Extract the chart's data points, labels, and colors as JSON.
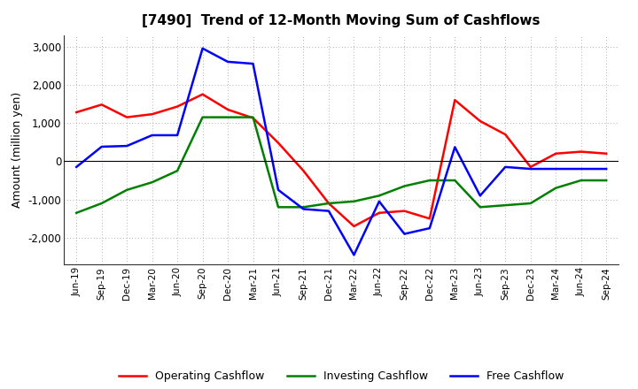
{
  "title": "[7490]  Trend of 12-Month Moving Sum of Cashflows",
  "ylabel": "Amount (million yen)",
  "background_color": "#ffffff",
  "grid_color": "#999999",
  "x_labels": [
    "Jun-19",
    "Sep-19",
    "Dec-19",
    "Mar-20",
    "Jun-20",
    "Sep-20",
    "Dec-20",
    "Mar-21",
    "Jun-21",
    "Sep-21",
    "Dec-21",
    "Mar-22",
    "Jun-22",
    "Sep-22",
    "Dec-22",
    "Mar-23",
    "Jun-23",
    "Sep-23",
    "Dec-23",
    "Mar-24",
    "Jun-24",
    "Sep-24"
  ],
  "operating_cashflow": [
    1280,
    1480,
    1150,
    1230,
    1430,
    1750,
    1350,
    1130,
    480,
    -250,
    -1100,
    -1700,
    -1350,
    -1300,
    -1500,
    1600,
    1050,
    700,
    -150,
    200,
    250,
    200
  ],
  "investing_cashflow": [
    -1350,
    -1100,
    -750,
    -550,
    -250,
    1150,
    1150,
    1150,
    -1200,
    -1200,
    -1100,
    -1050,
    -900,
    -650,
    -500,
    -500,
    -1200,
    -1150,
    -1100,
    -700,
    -500,
    -500
  ],
  "free_cashflow": [
    -150,
    380,
    400,
    680,
    680,
    2950,
    2600,
    2550,
    -750,
    -1250,
    -1300,
    -2450,
    -1050,
    -1900,
    -1750,
    370,
    -900,
    -150,
    -200,
    -200,
    -200,
    -200
  ],
  "ylim": [
    -2700,
    3300
  ],
  "yticks": [
    -2000,
    -1000,
    0,
    1000,
    2000,
    3000
  ],
  "line_colors": {
    "operating": "#ff0000",
    "investing": "#008000",
    "free": "#0000ff"
  },
  "legend_labels": [
    "Operating Cashflow",
    "Investing Cashflow",
    "Free Cashflow"
  ]
}
